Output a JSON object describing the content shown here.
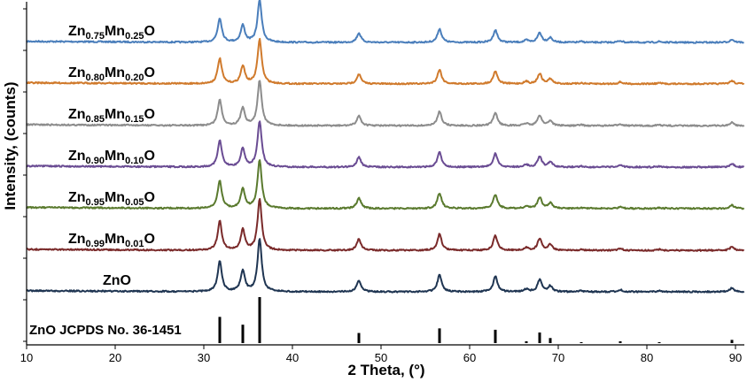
{
  "chart_data": {
    "type": "line",
    "xlabel": "2 Theta, (°)",
    "ylabel": "Intensity, (counts)",
    "xlim": [
      10,
      91
    ],
    "x_ticks": [
      10,
      20,
      30,
      40,
      50,
      60,
      70,
      80,
      90
    ],
    "peaks": [
      {
        "pos": 31.8,
        "rel": 0.57
      },
      {
        "pos": 34.4,
        "rel": 0.4
      },
      {
        "pos": 36.3,
        "rel": 1.0
      },
      {
        "pos": 47.5,
        "rel": 0.22
      },
      {
        "pos": 56.6,
        "rel": 0.32
      },
      {
        "pos": 62.9,
        "rel": 0.29
      },
      {
        "pos": 66.4,
        "rel": 0.05
      },
      {
        "pos": 67.9,
        "rel": 0.23
      },
      {
        "pos": 69.1,
        "rel": 0.11
      },
      {
        "pos": 72.6,
        "rel": 0.02
      },
      {
        "pos": 77.0,
        "rel": 0.04
      },
      {
        "pos": 81.4,
        "rel": 0.02
      },
      {
        "pos": 89.6,
        "rel": 0.07
      }
    ],
    "series": [
      {
        "name": "Zn0.75Mn0.25O",
        "main": "Zn",
        "s1": "0.75",
        "mid": "Mn",
        "s2": "0.25",
        "tail": "O",
        "color": "#4a7ebb",
        "baseline": 5,
        "scale": 48
      },
      {
        "name": "Zn0.80Mn0.20O",
        "main": "Zn",
        "s1": "0.80",
        "mid": "Mn",
        "s2": "0.20",
        "tail": "O",
        "color": "#d07a2c",
        "baseline": 4.17,
        "scale": 50
      },
      {
        "name": "Zn0.85Mn0.15O",
        "main": "Zn",
        "s1": "0.85",
        "mid": "Mn",
        "s2": "0.15",
        "tail": "O",
        "color": "#8c8c8c",
        "baseline": 3.33,
        "scale": 51
      },
      {
        "name": "Zn0.90Mn0.10O",
        "main": "Zn",
        "s1": "0.90",
        "mid": "Mn",
        "s2": "0.10",
        "tail": "O",
        "color": "#6a4c93",
        "baseline": 2.5,
        "scale": 52
      },
      {
        "name": "Zn0.95Mn0.05O",
        "main": "Zn",
        "s1": "0.95",
        "mid": "Mn",
        "s2": "0.05",
        "tail": "O",
        "color": "#5a7a2e",
        "baseline": 1.67,
        "scale": 55
      },
      {
        "name": "Zn0.99Mn0.01O",
        "main": "Zn",
        "s1": "0.99",
        "mid": "Mn",
        "s2": "0.01",
        "tail": "O",
        "color": "#7a2a2a",
        "baseline": 0.83,
        "scale": 58
      },
      {
        "name": "ZnO",
        "main": "ZnO",
        "s1": "",
        "mid": "",
        "s2": "",
        "tail": "",
        "color": "#1f3552",
        "baseline": 0,
        "scale": 60
      }
    ],
    "reference": {
      "label": "ZnO JCPDS No. 36-1451",
      "lines": [
        {
          "pos": 31.8,
          "h": 0.57
        },
        {
          "pos": 34.4,
          "h": 0.4
        },
        {
          "pos": 36.3,
          "h": 1.0
        },
        {
          "pos": 47.5,
          "h": 0.22
        },
        {
          "pos": 56.6,
          "h": 0.32
        },
        {
          "pos": 62.9,
          "h": 0.29
        },
        {
          "pos": 66.4,
          "h": 0.04
        },
        {
          "pos": 67.9,
          "h": 0.23
        },
        {
          "pos": 69.1,
          "h": 0.11
        },
        {
          "pos": 72.6,
          "h": 0.02
        },
        {
          "pos": 77.0,
          "h": 0.04
        },
        {
          "pos": 81.4,
          "h": 0.02
        },
        {
          "pos": 89.6,
          "h": 0.07
        }
      ]
    }
  }
}
